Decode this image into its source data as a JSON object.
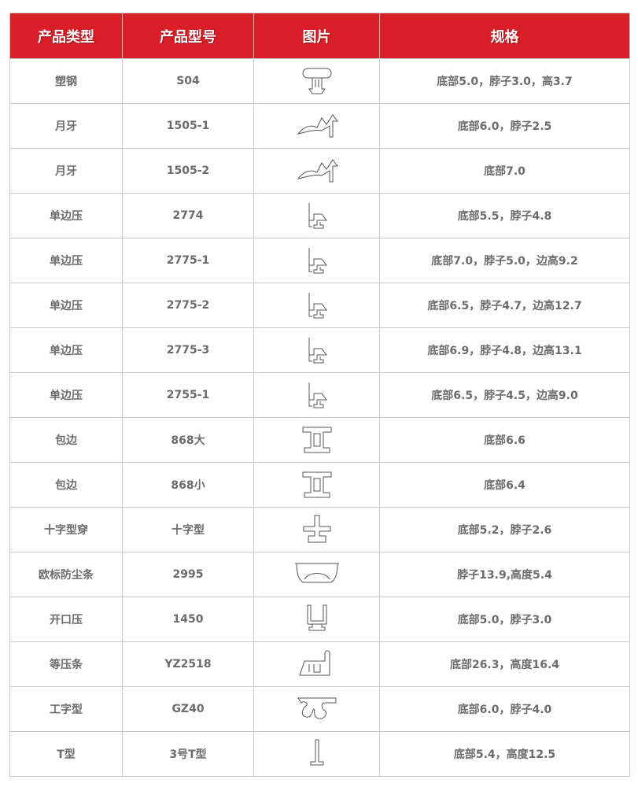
{
  "header": [
    "产品类型",
    "产品型号",
    "图片",
    "规格"
  ],
  "rows": [
    {
      "type": "塑钢",
      "model": "S04",
      "icon": "t-profile-icon",
      "spec": "底部5.0，脖子3.0，高3.7"
    },
    {
      "type": "月牙",
      "model": "1505-1",
      "icon": "crescent-profile-icon",
      "spec": "底部6.0，脖子2.5"
    },
    {
      "type": "月牙",
      "model": "1505-2",
      "icon": "crescent-profile-icon",
      "spec": "底部7.0"
    },
    {
      "type": "单边压",
      "model": "2774",
      "icon": "single-side-profile-icon",
      "spec": "底部5.5，脖子4.8"
    },
    {
      "type": "单边压",
      "model": "2775-1",
      "icon": "single-side-profile-icon",
      "spec": "底部7.0，脖子5.0，边高9.2"
    },
    {
      "type": "单边压",
      "model": "2775-2",
      "icon": "single-side-profile-icon",
      "spec": "底部6.5，脖子4.7，边高12.7"
    },
    {
      "type": "单边压",
      "model": "2775-3",
      "icon": "single-side-profile-icon",
      "spec": "底部6.9，脖子4.8，边高13.1"
    },
    {
      "type": "单边压",
      "model": "2755-1",
      "icon": "single-side-profile-icon",
      "spec": "底部6.5，脖子4.5，边高9.0"
    },
    {
      "type": "包边",
      "model": "868大",
      "icon": "edge-profile-icon",
      "spec": "底部6.6"
    },
    {
      "type": "包边",
      "model": "868小",
      "icon": "edge-profile-icon",
      "spec": "底部6.4"
    },
    {
      "type": "十字型穿",
      "model": "十字型",
      "icon": "cross-profile-icon",
      "spec": "底部5.2，脖子2.6"
    },
    {
      "type": "欧标防尘条",
      "model": "2995",
      "icon": "dust-strip-profile-icon",
      "spec": "脖子13.9,高度5.4"
    },
    {
      "type": "开口压",
      "model": "1450",
      "icon": "open-profile-icon",
      "spec": "底部5.0，脖子3.0"
    },
    {
      "type": "等压条",
      "model": "YZ2518",
      "icon": "pressure-strip-profile-icon",
      "spec": "底部26.3，高度16.4"
    },
    {
      "type": "工字型",
      "model": "GZ40",
      "icon": "i-profile-icon",
      "spec": "底部6.0，脖子4.0"
    },
    {
      "type": "T型",
      "model": "3号T型",
      "icon": "t-small-profile-icon",
      "spec": "底部5.4，高度12.5"
    }
  ]
}
